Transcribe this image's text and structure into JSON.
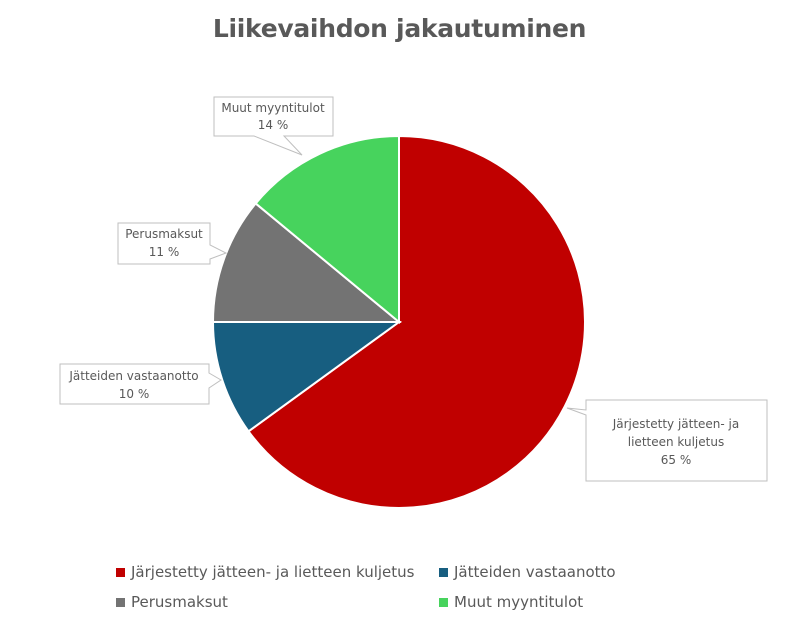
{
  "chart_data": {
    "type": "pie",
    "title": "Liikevaihdon jakautuminen",
    "categories": [
      "Järjestetty jätteen- ja lietteen kuljetus",
      "Jätteiden vastaanotto",
      "Perusmaksut",
      "Muut myyntitulot"
    ],
    "values": [
      65,
      10,
      11,
      14
    ],
    "unit": "%",
    "labels": [
      "65 %",
      "10 %",
      "11 %",
      "14 %"
    ],
    "colors": [
      "#C00000",
      "#175E80",
      "#737373",
      "#47D35D"
    ],
    "legend_position": "bottom"
  },
  "title": "Liikevaihdon jakautuminen",
  "callouts": {
    "c0": {
      "line1": "Järjestetty jätteen- ja",
      "line2": "lietteen kuljetus",
      "value": "65 %"
    },
    "c1": {
      "line1": "Jätteiden vastaanotto",
      "value": "10 %"
    },
    "c2": {
      "line1": "Perusmaksut",
      "value": "11 %"
    },
    "c3": {
      "line1": "Muut myyntitulot",
      "value": "14 %"
    }
  },
  "legend": [
    {
      "label": "Järjestetty jätteen- ja lietteen kuljetus",
      "color": "#C00000"
    },
    {
      "label": "Jätteiden vastaanotto",
      "color": "#175E80"
    },
    {
      "label": "Perusmaksut",
      "color": "#737373"
    },
    {
      "label": "Muut myyntitulot",
      "color": "#47D35D"
    }
  ]
}
